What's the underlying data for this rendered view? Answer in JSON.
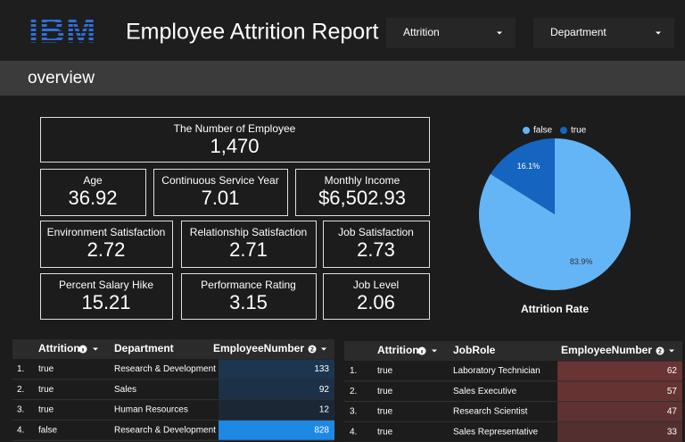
{
  "header": {
    "logo": "IBM",
    "title": "Employee Attrition Report",
    "filters": [
      "Attrition",
      "Department"
    ]
  },
  "section": "overview",
  "kpis": [
    {
      "label": "The Number of Employee",
      "value": "1,470"
    },
    {
      "label": "Age",
      "value": "36.92"
    },
    {
      "label": "Continuous Service Year",
      "value": "7.01"
    },
    {
      "label": "Monthly Income",
      "value": "$6,502.93"
    },
    {
      "label": "Environment Satisfaction",
      "value": "2.72"
    },
    {
      "label": "Relationship Satisfaction",
      "value": "2.71"
    },
    {
      "label": "Job Satisfaction",
      "value": "2.73"
    },
    {
      "label": "Percent Salary Hike",
      "value": "15.21"
    },
    {
      "label": "Performance Rating",
      "value": "3.15"
    },
    {
      "label": "Job Level",
      "value": "2.06"
    }
  ],
  "chart_data": {
    "type": "pie",
    "title": "Attrition Rate",
    "categories": [
      "false",
      "true"
    ],
    "values": [
      83.9,
      16.1
    ],
    "value_labels": [
      "83.9%",
      "16.1%"
    ],
    "colors": [
      "#64b5f6",
      "#1565c0"
    ]
  },
  "tables": [
    {
      "columns": [
        "Attrition",
        "Department",
        "EmployeeNumber"
      ],
      "sort_badge": "2",
      "color": "#1e88e5",
      "rows": [
        [
          "1.",
          "true",
          "Research & Development",
          133
        ],
        [
          "2.",
          "true",
          "Sales",
          92
        ],
        [
          "3.",
          "true",
          "Human Resources",
          12
        ],
        [
          "4.",
          "false",
          "Research & Development",
          828
        ]
      ]
    },
    {
      "columns": [
        "Attrition",
        "JobRole",
        "EmployeeNumber"
      ],
      "sort_badge": "2",
      "color": "#6a3434",
      "rows": [
        [
          "1.",
          "true",
          "Laboratory Technician",
          62
        ],
        [
          "2.",
          "true",
          "Sales Executive",
          57
        ],
        [
          "3.",
          "true",
          "Research Scientist",
          47
        ],
        [
          "4.",
          "true",
          "Sales Representative",
          33
        ]
      ]
    }
  ]
}
